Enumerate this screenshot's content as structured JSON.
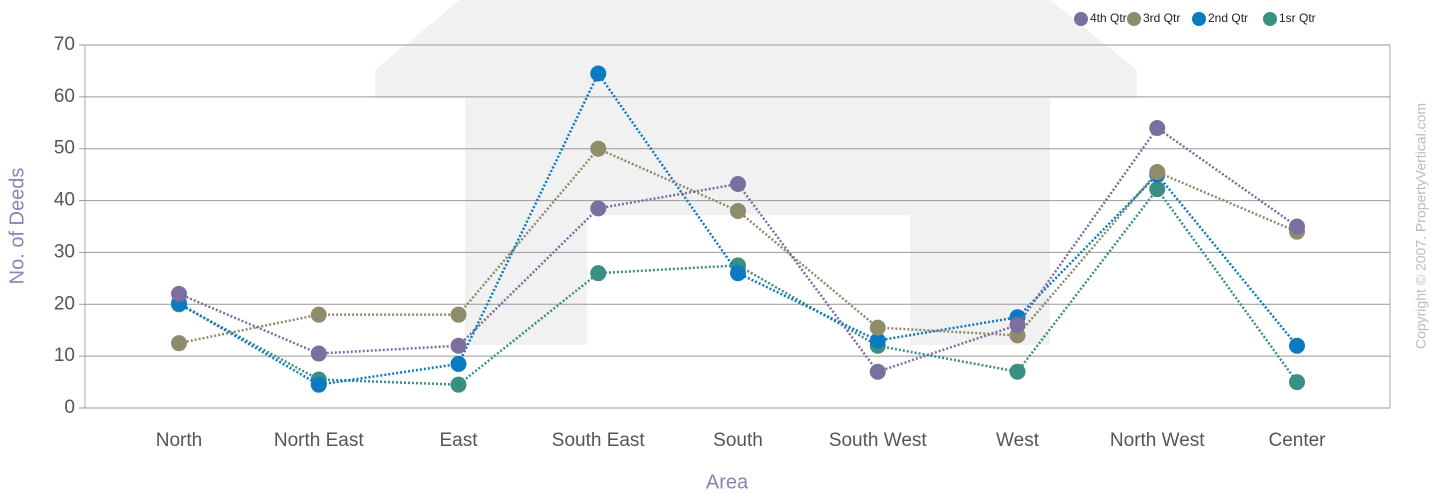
{
  "chart_data": {
    "type": "line",
    "x_label": "Area",
    "y_label": "No. of Deeds",
    "copyright": "Copyright © 2007. PropertyVertical.com",
    "categories": [
      "North",
      "North East",
      "East",
      "South East",
      "South",
      "South West",
      "West",
      "North West",
      "Center"
    ],
    "series": [
      {
        "name": "4th Qtr",
        "color": "#7b6fa0",
        "values": [
          22,
          10.5,
          12,
          38.5,
          43.2,
          7,
          16,
          54,
          35
        ]
      },
      {
        "name": "3rd Qtr",
        "color": "#8e8c6a",
        "values": [
          12.5,
          18,
          18,
          50,
          38,
          15.5,
          14,
          45.5,
          34
        ]
      },
      {
        "name": "2nd Qtr",
        "color": "#0a7bc1",
        "values": [
          20.2,
          4.5,
          8.5,
          64.5,
          26,
          13,
          17.5,
          45,
          12
        ]
      },
      {
        "name": "1sr Qtr",
        "color": "#3a8f83",
        "values": [
          20,
          5.5,
          4.5,
          26,
          27.5,
          12,
          7,
          42.2,
          5
        ]
      }
    ],
    "ylim": [
      0,
      70
    ],
    "yticks": [
      0,
      10,
      20,
      30,
      40,
      50,
      60,
      70
    ],
    "grid": true
  }
}
